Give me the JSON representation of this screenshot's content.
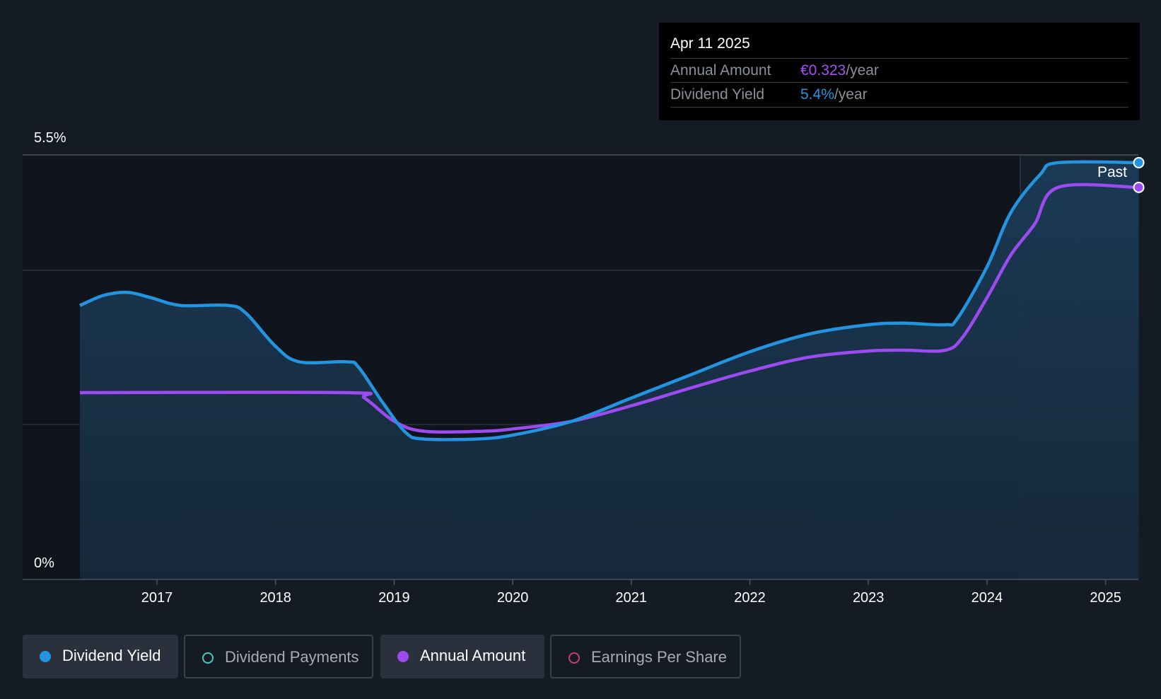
{
  "chart_data": {
    "type": "area",
    "y_tick_labels": [
      "5.5%",
      "0%"
    ],
    "ylim": [
      0,
      5.5
    ],
    "x_tick_labels": [
      "2017",
      "2018",
      "2019",
      "2020",
      "2021",
      "2022",
      "2023",
      "2024",
      "2025"
    ],
    "xlim": [
      2016.0,
      2025.5
    ],
    "past_label": "Past",
    "series": [
      {
        "name": "Dividend Yield",
        "color": "#2394df",
        "filled": true,
        "points": [
          [
            2016.35,
            3.55
          ],
          [
            2016.55,
            3.68
          ],
          [
            2016.75,
            3.72
          ],
          [
            2016.95,
            3.65
          ],
          [
            2017.2,
            3.55
          ],
          [
            2017.6,
            3.55
          ],
          [
            2017.75,
            3.45
          ],
          [
            2018.0,
            3.02
          ],
          [
            2018.2,
            2.82
          ],
          [
            2018.6,
            2.82
          ],
          [
            2018.7,
            2.75
          ],
          [
            2018.9,
            2.3
          ],
          [
            2019.1,
            1.9
          ],
          [
            2019.25,
            1.82
          ],
          [
            2019.7,
            1.82
          ],
          [
            2020.0,
            1.87
          ],
          [
            2020.5,
            2.05
          ],
          [
            2021.0,
            2.35
          ],
          [
            2021.5,
            2.65
          ],
          [
            2022.0,
            2.95
          ],
          [
            2022.5,
            3.18
          ],
          [
            2023.0,
            3.3
          ],
          [
            2023.3,
            3.32
          ],
          [
            2023.65,
            3.3
          ],
          [
            2023.75,
            3.38
          ],
          [
            2024.0,
            4.05
          ],
          [
            2024.2,
            4.75
          ],
          [
            2024.45,
            5.25
          ],
          [
            2024.6,
            5.4
          ],
          [
            2025.28,
            5.4
          ]
        ]
      },
      {
        "name": "Annual Amount",
        "color": "#9b4bef",
        "filled": false,
        "points": [
          [
            2016.35,
            2.42
          ],
          [
            2018.6,
            2.42
          ],
          [
            2018.75,
            2.35
          ],
          [
            2019.0,
            2.05
          ],
          [
            2019.25,
            1.92
          ],
          [
            2019.75,
            1.92
          ],
          [
            2020.0,
            1.95
          ],
          [
            2020.5,
            2.05
          ],
          [
            2021.0,
            2.25
          ],
          [
            2021.5,
            2.48
          ],
          [
            2022.0,
            2.7
          ],
          [
            2022.5,
            2.88
          ],
          [
            2023.0,
            2.96
          ],
          [
            2023.3,
            2.97
          ],
          [
            2023.65,
            2.97
          ],
          [
            2023.8,
            3.15
          ],
          [
            2024.0,
            3.65
          ],
          [
            2024.2,
            4.2
          ],
          [
            2024.4,
            4.6
          ],
          [
            2024.6,
            5.08
          ],
          [
            2025.28,
            5.08
          ]
        ]
      }
    ]
  },
  "tooltip": {
    "date": "Apr 11 2025",
    "rows": [
      {
        "label": "Annual Amount",
        "value": "€0.323",
        "unit": "/year",
        "color": "#a34ff2"
      },
      {
        "label": "Dividend Yield",
        "value": "5.4%",
        "unit": "/year",
        "color": "#2394df"
      }
    ]
  },
  "legend": [
    {
      "label": "Dividend Yield",
      "active": true,
      "color": "#2394df",
      "filled": true
    },
    {
      "label": "Dividend Payments",
      "active": false,
      "color": "#4ec7b8",
      "filled": false
    },
    {
      "label": "Annual Amount",
      "active": true,
      "color": "#9b4bef",
      "filled": true
    },
    {
      "label": "Earnings Per Share",
      "active": false,
      "color": "#c2407a",
      "filled": false
    }
  ]
}
